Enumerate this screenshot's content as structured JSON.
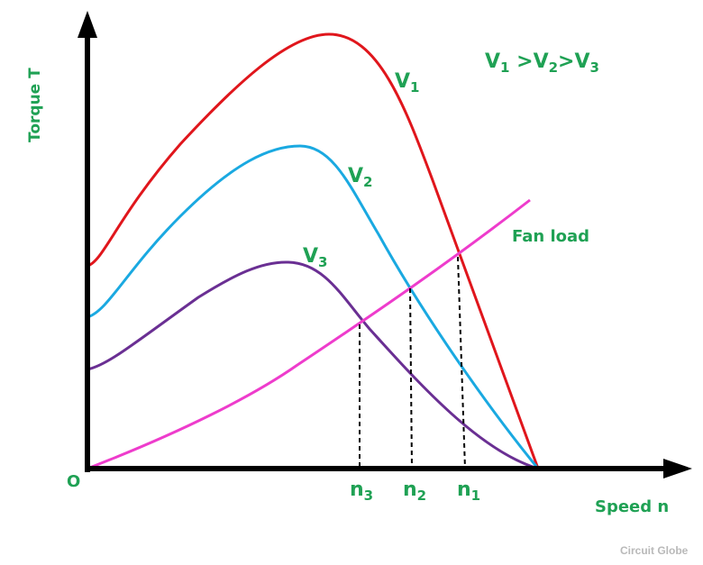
{
  "diagram": {
    "y_axis_label": "Torque T",
    "x_axis_label": "Speed n",
    "origin_label": "O",
    "relation": {
      "v1": "V",
      "s1": "1",
      "gt1": " >",
      "v2": "V",
      "s2": "2",
      "gt2": ">",
      "v3": "V",
      "s3": "3"
    },
    "curves": [
      {
        "name": "V",
        "sub": "1",
        "color": "#e0161c"
      },
      {
        "name": "V",
        "sub": "2",
        "color": "#1aa9e1"
      },
      {
        "name": "V",
        "sub": "3",
        "color": "#6a2f93"
      }
    ],
    "load_curve": {
      "label": "Fan load",
      "color": "#ee3ccc"
    },
    "speed_marks": [
      {
        "name": "n",
        "sub": "3"
      },
      {
        "name": "n",
        "sub": "2"
      },
      {
        "name": "n",
        "sub": "1"
      }
    ],
    "watermark": "Circuit Globe"
  }
}
